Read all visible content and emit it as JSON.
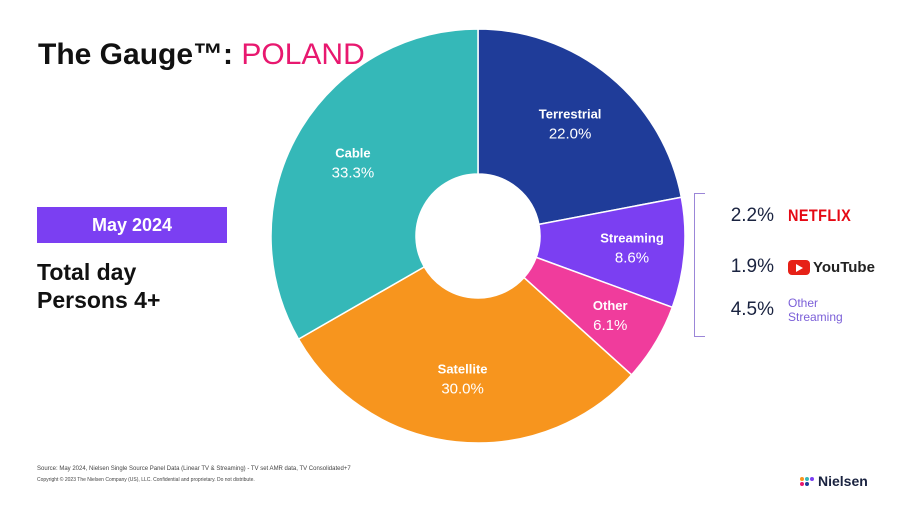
{
  "title": {
    "main": "The Gauge™:",
    "country": "POLAND"
  },
  "badge": "May 2024",
  "subtitle": {
    "line1": "Total day",
    "line2": "Persons 4+"
  },
  "chart_data": {
    "type": "pie",
    "variant": "donut",
    "start": "top, clockwise",
    "slices": [
      {
        "label": "Terrestrial",
        "value": 22.0,
        "display": "22.0%",
        "color": "#1f3c99"
      },
      {
        "label": "Streaming",
        "value": 8.6,
        "display": "8.6%",
        "color": "#7b3ff2"
      },
      {
        "label": "Other",
        "value": 6.1,
        "display": "6.1%",
        "color": "#f03c9c"
      },
      {
        "label": "Satellite",
        "value": 30.0,
        "display": "30.0%",
        "color": "#f7951e"
      },
      {
        "label": "Cable",
        "value": 33.3,
        "display": "33.3%",
        "color": "#35b8b8"
      }
    ],
    "streaming_breakdown": [
      {
        "label": "NETFLIX",
        "value": "2.2%"
      },
      {
        "label": "YouTube",
        "value": "1.9%"
      },
      {
        "label": "Other Streaming",
        "value": "4.5%"
      }
    ]
  },
  "footer": {
    "source": "Source: May 2024, Nielsen Single Source Panel Data (Linear TV & Streaming) - TV set AMR data, TV Consolidated+7",
    "copyright": "Copyright © 2023 The Nielsen Company (US), LLC. Confidential and proprietary. Do not distribute."
  },
  "brand": "Nielsen",
  "colors": {
    "accent": "#e8186f",
    "badge": "#7b3ff2"
  }
}
